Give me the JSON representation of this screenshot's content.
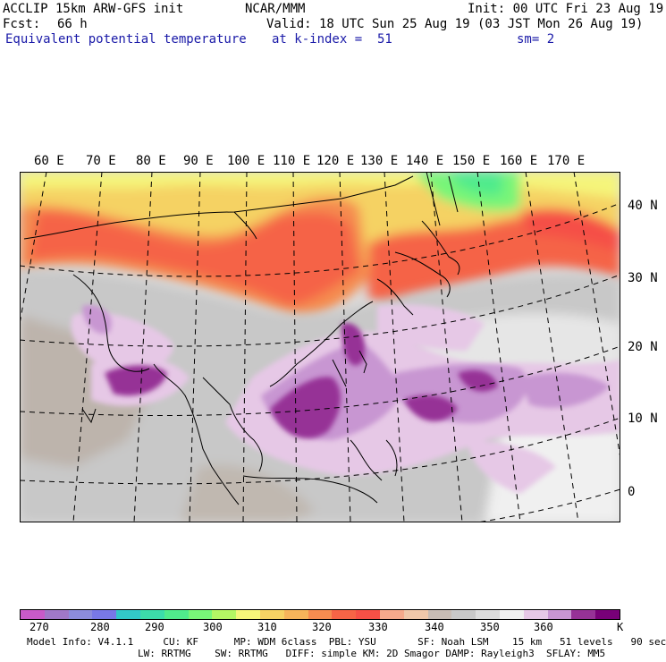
{
  "header": {
    "model": "ACCLIP 15km ARW-GFS init",
    "org": "NCAR/MMM",
    "init": "Init: 00 UTC Fri 23 Aug 19",
    "fcst_label": "Fcst:",
    "fcst_value": "66 h",
    "valid": "Valid: 18 UTC Sun 25 Aug 19 (03 JST Mon 26 Aug 19)",
    "field": "Equivalent potential temperature",
    "level": "at k-index =  51",
    "smooth": "sm= 2"
  },
  "map": {
    "lon_labels": [
      "60 E",
      "70 E",
      "80 E",
      "90 E",
      "100 E",
      "110 E",
      "120 E",
      "130 E",
      "140 E",
      "150 E",
      "160 E",
      "170 E"
    ],
    "lat_labels": [
      "40 N",
      "30 N",
      "20 N",
      "10 N",
      "0"
    ]
  },
  "colorbar": {
    "colors": [
      "#c85ac8",
      "#a078c8",
      "#8c8cdc",
      "#7878e6",
      "#32c8c8",
      "#3cdcaa",
      "#50eb8c",
      "#78f578",
      "#b4f564",
      "#f5f57a",
      "#f5d264",
      "#f5b45a",
      "#f58c50",
      "#f56446",
      "#f55046",
      "#f5aa8c",
      "#f0c8aa",
      "#c8bcb4",
      "#c8c8c8",
      "#dcdcdc",
      "#f0f0f0",
      "#e6c8e6",
      "#c896d2",
      "#963296",
      "#780078"
    ],
    "labels": [
      "270",
      "280",
      "290",
      "300",
      "310",
      "320",
      "330",
      "340",
      "350",
      "360",
      "K"
    ],
    "label_units": [
      "270",
      "280",
      "290",
      "300",
      "310",
      "320",
      "330",
      "340",
      "350",
      "360"
    ]
  },
  "model_info": {
    "line1": "Model Info: V4.1.1     CU: KF      MP: WDM 6class  PBL: YSU       SF: Noah LSM    15 km   51 levels   90 sec",
    "line2": "LW: RRTMG    SW: RRTMG   DIFF: simple KM: 2D Smagor DAMP: Rayleigh3  SFLAY: MM5"
  }
}
